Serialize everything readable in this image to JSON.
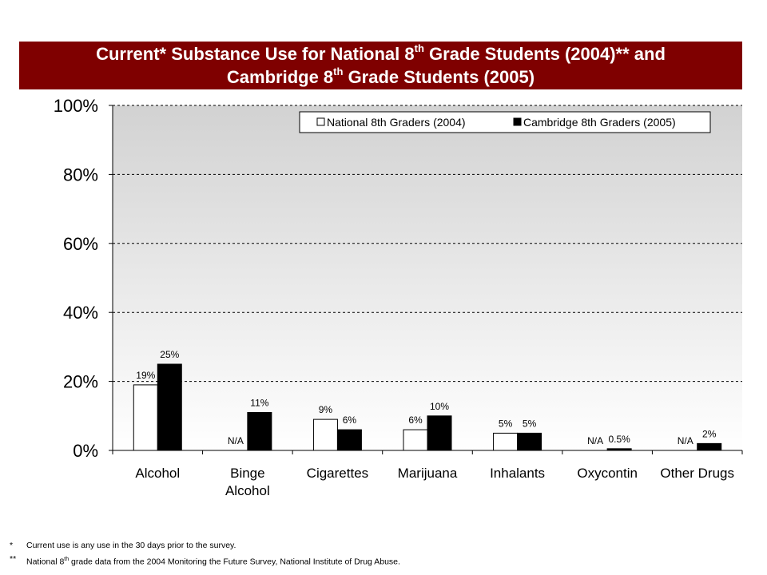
{
  "title": {
    "line1_a": "Current* Substance Use for National 8",
    "line1_sup": "th",
    "line1_b": " Grade Students (2004)** and",
    "line2_a": "Cambridge 8",
    "line2_sup": "th",
    "line2_b": " Grade Students (2005)"
  },
  "chart_data": {
    "type": "bar",
    "categories": [
      [
        "Alcohol"
      ],
      [
        "Binge",
        "Alcohol"
      ],
      [
        "Cigarettes"
      ],
      [
        "Marijuana"
      ],
      [
        "Inhalants"
      ],
      [
        "Oxycontin"
      ],
      [
        "Other Drugs"
      ]
    ],
    "series": [
      {
        "name": "National 8th Graders (2004)",
        "color": "#ffffff",
        "values": [
          19,
          null,
          9,
          6,
          5,
          null,
          null
        ],
        "labels": [
          "19%",
          "N/A",
          "9%",
          "6%",
          "5%",
          "N/A",
          "N/A"
        ]
      },
      {
        "name": "Cambridge 8th Graders (2005)",
        "color": "#000000",
        "values": [
          25,
          11,
          6,
          10,
          5,
          0.5,
          2
        ],
        "labels": [
          "25%",
          "11%",
          "6%",
          "10%",
          "5%",
          "0.5%",
          "2%"
        ]
      }
    ],
    "ylim": [
      0,
      100
    ],
    "yticks": [
      "0%",
      "20%",
      "40%",
      "60%",
      "80%",
      "100%"
    ],
    "ytick_values": [
      0,
      20,
      40,
      60,
      80,
      100
    ],
    "grid": "dashed horizontal",
    "legend_position": "top-right"
  },
  "footnotes": [
    {
      "mark": "*",
      "text_a": "Current  use is any use in the 30  days prior to the survey.",
      "sup": "",
      "text_b": ""
    },
    {
      "mark": "**",
      "text_a": "National 8",
      "sup": "th",
      "text_b": " grade data from the 2004 Monitoring the Future Survey, National Institute of Drug Abuse."
    }
  ]
}
